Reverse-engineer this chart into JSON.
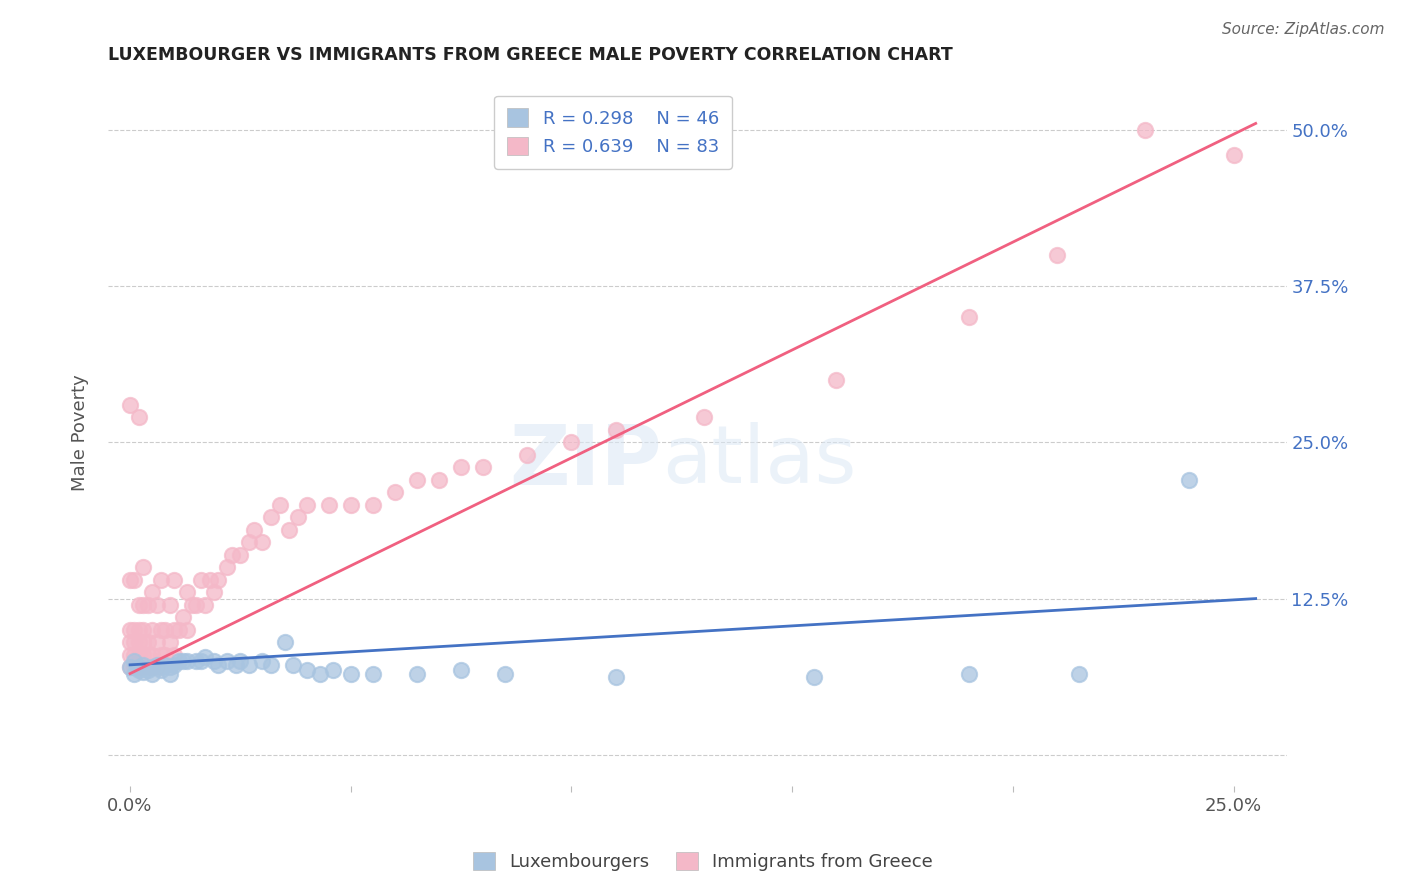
{
  "title": "LUXEMBOURGER VS IMMIGRANTS FROM GREECE MALE POVERTY CORRELATION CHART",
  "source": "Source: ZipAtlas.com",
  "ylabel": "Male Poverty",
  "xlim": [
    -0.005,
    0.262
  ],
  "ylim": [
    -0.025,
    0.54
  ],
  "lux_color": "#a8c4e0",
  "greece_color": "#f4b8c8",
  "lux_line_color": "#4472c4",
  "greece_line_color": "#f06080",
  "lux_R": 0.298,
  "lux_N": 46,
  "greece_R": 0.639,
  "greece_N": 83,
  "background_color": "#ffffff",
  "grid_color": "#cccccc",
  "title_color": "#222222",
  "legend_text_color": "#4472c4",
  "axis_tick_color": "#4472c4",
  "axis_label_color": "#555555",
  "lux_line_x0": 0.0,
  "lux_line_y0": 0.072,
  "lux_line_x1": 0.255,
  "lux_line_y1": 0.125,
  "greece_line_x0": 0.0,
  "greece_line_y0": 0.065,
  "greece_line_x1": 0.255,
  "greece_line_y1": 0.505,
  "lux_scatter_x": [
    0.0,
    0.001,
    0.001,
    0.002,
    0.002,
    0.003,
    0.003,
    0.004,
    0.005,
    0.005,
    0.006,
    0.007,
    0.007,
    0.008,
    0.009,
    0.009,
    0.01,
    0.011,
    0.012,
    0.013,
    0.015,
    0.016,
    0.017,
    0.019,
    0.02,
    0.022,
    0.024,
    0.025,
    0.027,
    0.03,
    0.032,
    0.035,
    0.037,
    0.04,
    0.043,
    0.046,
    0.05,
    0.055,
    0.065,
    0.075,
    0.085,
    0.11,
    0.155,
    0.19,
    0.215,
    0.24
  ],
  "lux_scatter_y": [
    0.07,
    0.065,
    0.075,
    0.068,
    0.07,
    0.066,
    0.072,
    0.068,
    0.07,
    0.065,
    0.072,
    0.07,
    0.068,
    0.072,
    0.07,
    0.065,
    0.072,
    0.075,
    0.075,
    0.075,
    0.075,
    0.075,
    0.078,
    0.075,
    0.072,
    0.075,
    0.072,
    0.075,
    0.072,
    0.075,
    0.072,
    0.09,
    0.072,
    0.068,
    0.065,
    0.068,
    0.065,
    0.065,
    0.065,
    0.068,
    0.065,
    0.062,
    0.062,
    0.065,
    0.065,
    0.22
  ],
  "greece_scatter_x": [
    0.0,
    0.0,
    0.0,
    0.0,
    0.0,
    0.0,
    0.001,
    0.001,
    0.001,
    0.001,
    0.001,
    0.002,
    0.002,
    0.002,
    0.002,
    0.002,
    0.002,
    0.003,
    0.003,
    0.003,
    0.003,
    0.003,
    0.003,
    0.004,
    0.004,
    0.004,
    0.004,
    0.005,
    0.005,
    0.005,
    0.005,
    0.006,
    0.006,
    0.006,
    0.007,
    0.007,
    0.007,
    0.008,
    0.008,
    0.009,
    0.009,
    0.01,
    0.01,
    0.01,
    0.011,
    0.012,
    0.013,
    0.013,
    0.014,
    0.015,
    0.016,
    0.017,
    0.018,
    0.019,
    0.02,
    0.022,
    0.023,
    0.025,
    0.027,
    0.028,
    0.03,
    0.032,
    0.034,
    0.036,
    0.038,
    0.04,
    0.045,
    0.05,
    0.055,
    0.06,
    0.065,
    0.07,
    0.075,
    0.08,
    0.09,
    0.1,
    0.11,
    0.13,
    0.16,
    0.19,
    0.21,
    0.23,
    0.25
  ],
  "greece_scatter_y": [
    0.07,
    0.08,
    0.09,
    0.1,
    0.14,
    0.28,
    0.07,
    0.08,
    0.09,
    0.1,
    0.14,
    0.07,
    0.08,
    0.09,
    0.1,
    0.12,
    0.27,
    0.07,
    0.08,
    0.09,
    0.1,
    0.12,
    0.15,
    0.07,
    0.08,
    0.09,
    0.12,
    0.07,
    0.08,
    0.1,
    0.13,
    0.07,
    0.09,
    0.12,
    0.08,
    0.1,
    0.14,
    0.08,
    0.1,
    0.09,
    0.12,
    0.08,
    0.1,
    0.14,
    0.1,
    0.11,
    0.1,
    0.13,
    0.12,
    0.12,
    0.14,
    0.12,
    0.14,
    0.13,
    0.14,
    0.15,
    0.16,
    0.16,
    0.17,
    0.18,
    0.17,
    0.19,
    0.2,
    0.18,
    0.19,
    0.2,
    0.2,
    0.2,
    0.2,
    0.21,
    0.22,
    0.22,
    0.23,
    0.23,
    0.24,
    0.25,
    0.26,
    0.27,
    0.3,
    0.35,
    0.4,
    0.5,
    0.48
  ]
}
